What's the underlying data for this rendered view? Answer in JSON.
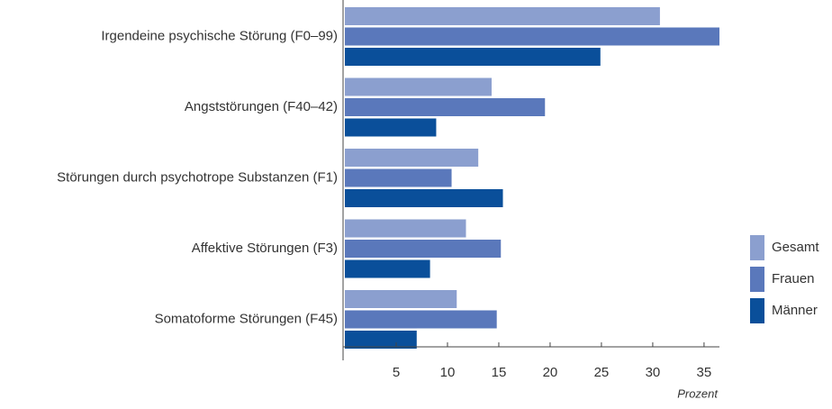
{
  "chart_data": {
    "type": "bar",
    "orientation": "horizontal",
    "x_label": "Prozent",
    "categories": [
      "Irgendeine psychische Störung (F0–99)",
      "Angststörungen (F40–42)",
      "Störungen durch psychotrope Substanzen (F1)",
      "Affektive Störungen (F3)",
      "Somatoforme Störungen (F45)"
    ],
    "series": [
      {
        "name": "Gesamt",
        "color": "#8b9fcf",
        "values": [
          30.7,
          14.3,
          13.0,
          11.8,
          10.9
        ]
      },
      {
        "name": "Frauen",
        "color": "#5a78bb",
        "values": [
          36.5,
          19.5,
          10.4,
          15.2,
          14.8
        ]
      },
      {
        "name": "Männer",
        "color": "#0a4f9a",
        "values": [
          24.9,
          8.9,
          15.4,
          8.3,
          7.0
        ]
      }
    ],
    "xlim": [
      0,
      36.5
    ],
    "xticks": [
      5,
      10,
      15,
      20,
      25,
      30,
      35
    ],
    "legend": "right"
  }
}
